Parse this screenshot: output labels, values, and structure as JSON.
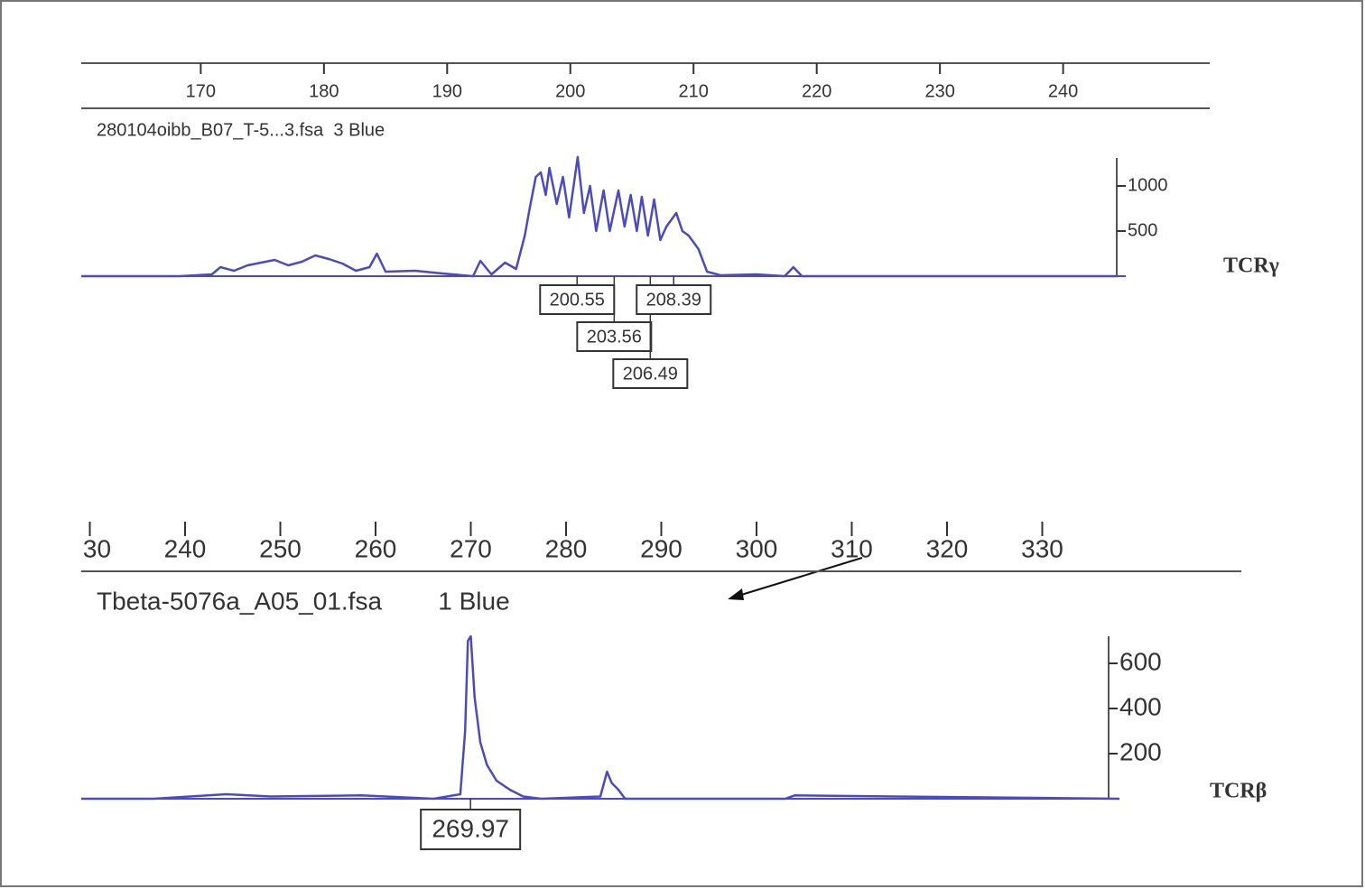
{
  "chart_data": [
    {
      "type": "line",
      "subtitle": "280104oibb_B07_T-5...3.fsa  3 Blue",
      "side_label": "TCRγ",
      "color": "#4b4bbf",
      "xlim": [
        160.3,
        251.9
      ],
      "xticks": [
        170,
        180,
        190,
        200,
        210,
        220,
        230,
        240
      ],
      "ylim": [
        0,
        1310
      ],
      "yticks": [
        500,
        1000
      ],
      "x": [
        160.3,
        168.3,
        170.9,
        171.6,
        172.7,
        173.8,
        174.9,
        176.0,
        177.1,
        178.2,
        179.3,
        180.4,
        181.5,
        182.6,
        183.7,
        184.3,
        185.0,
        187.4,
        189.6,
        192.1,
        192.7,
        193.6,
        194.7,
        195.6,
        196.3,
        196.7,
        197.2,
        197.6,
        198.0,
        198.3,
        198.9,
        199.4,
        199.9,
        200.6,
        201.1,
        201.6,
        202.1,
        202.7,
        203.2,
        203.9,
        204.4,
        204.9,
        205.4,
        205.8,
        206.3,
        206.8,
        207.3,
        207.8,
        208.6,
        209.1,
        209.6,
        210.4,
        211.1,
        212.2,
        215.1,
        217.4,
        218.1,
        218.8,
        244.4
      ],
      "values": [
        0,
        0,
        20,
        100,
        60,
        120,
        150,
        180,
        120,
        160,
        230,
        190,
        140,
        60,
        100,
        250,
        50,
        60,
        30,
        0,
        170,
        20,
        150,
        80,
        450,
        750,
        1100,
        1150,
        900,
        1200,
        800,
        1100,
        650,
        1320,
        700,
        1000,
        500,
        950,
        500,
        950,
        550,
        900,
        500,
        880,
        450,
        850,
        400,
        550,
        700,
        500,
        450,
        300,
        50,
        10,
        20,
        0,
        100,
        0,
        0
      ],
      "peak_labels": [
        200.55,
        203.56,
        206.49,
        208.39
      ]
    },
    {
      "type": "line",
      "subtitle": "Tbeta-5076a_A05_01.fsa        1 Blue",
      "side_label": "TCRβ",
      "color": "#4b4bbf",
      "xlim": [
        229.1,
        350.9
      ],
      "xticks": [
        {
          "value": 230,
          "label": "30"
        },
        240,
        250,
        260,
        270,
        280,
        290,
        300,
        310,
        320,
        330
      ],
      "ylim": [
        0,
        720
      ],
      "yticks": [
        200,
        400,
        600
      ],
      "x": [
        229.1,
        236.7,
        244.3,
        249.0,
        258.5,
        266.1,
        268.9,
        269.4,
        269.7,
        270.0,
        270.4,
        271.0,
        271.7,
        272.7,
        274.1,
        275.5,
        277.4,
        283.6,
        284.3,
        284.8,
        285.5,
        286.2,
        303.0,
        304.0,
        314.4,
        338.1
      ],
      "values": [
        0,
        0,
        20,
        10,
        15,
        0,
        20,
        300,
        700,
        720,
        450,
        250,
        150,
        80,
        40,
        10,
        0,
        10,
        120,
        70,
        40,
        0,
        0,
        15,
        10,
        0
      ],
      "peak_labels": [
        269.97
      ]
    }
  ]
}
